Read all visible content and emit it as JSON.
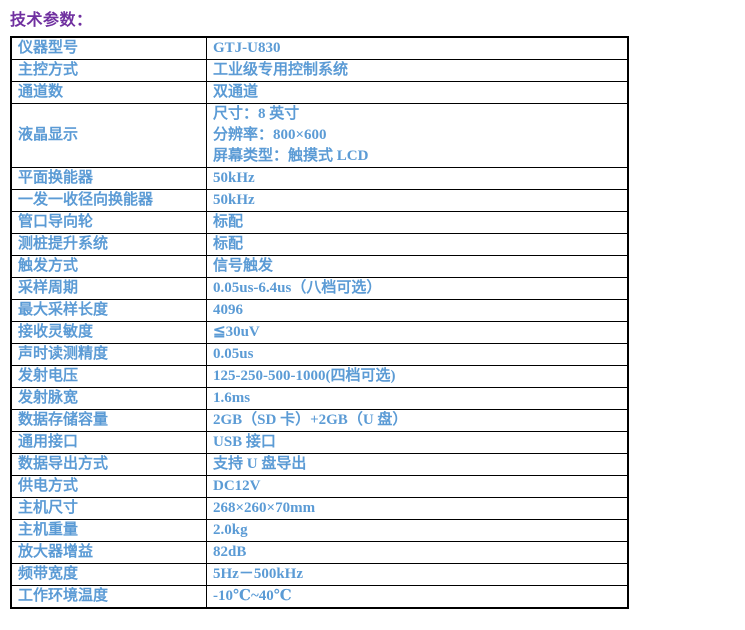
{
  "page": {
    "title": "技术参数："
  },
  "colors": {
    "title_text": "#7030A0",
    "table_text": "#5B9BD5",
    "table_border": "#000000",
    "background": "#FFFFFF"
  },
  "table": {
    "rows": [
      {
        "label": "仪器型号",
        "value": "GTJ-U830"
      },
      {
        "label": "主控方式",
        "value": "工业级专用控制系统"
      },
      {
        "label": "通道数",
        "value": "双通道"
      },
      {
        "label": "液晶显示",
        "value": [
          "尺寸：8 英寸",
          "分辨率：800×600",
          "屏幕类型：触摸式 LCD"
        ]
      },
      {
        "label": "平面换能器",
        "value": "50kHz"
      },
      {
        "label": "一发一收径向换能器",
        "value": "50kHz"
      },
      {
        "label": "管口导向轮",
        "value": "标配"
      },
      {
        "label": "测桩提升系统",
        "value": "标配"
      },
      {
        "label": "触发方式",
        "value": "信号触发"
      },
      {
        "label": "采样周期",
        "value": "0.05us-6.4us（八档可选）"
      },
      {
        "label": "最大采样长度",
        "value": "4096"
      },
      {
        "label": "接收灵敏度",
        "value": "≦30uV"
      },
      {
        "label": "声时读测精度",
        "value": "0.05us"
      },
      {
        "label": "发射电压",
        "value": "125-250-500-1000(四档可选)"
      },
      {
        "label": "发射脉宽",
        "value": "1.6ms"
      },
      {
        "label": "数据存储容量",
        "value": "2GB（SD 卡）+2GB（U 盘）"
      },
      {
        "label": "通用接口",
        "value": "USB 接口"
      },
      {
        "label": "数据导出方式",
        "value": "支持 U 盘导出"
      },
      {
        "label": "供电方式",
        "value": "DC12V"
      },
      {
        "label": "主机尺寸",
        "value": "268×260×70mm"
      },
      {
        "label": "主机重量",
        "value": "2.0kg"
      },
      {
        "label": "放大器增益",
        "value": "82dB"
      },
      {
        "label": "频带宽度",
        "value": "5Hz－500kHz"
      },
      {
        "label": "工作环境温度",
        "value": "-10℃~40℃"
      }
    ]
  }
}
